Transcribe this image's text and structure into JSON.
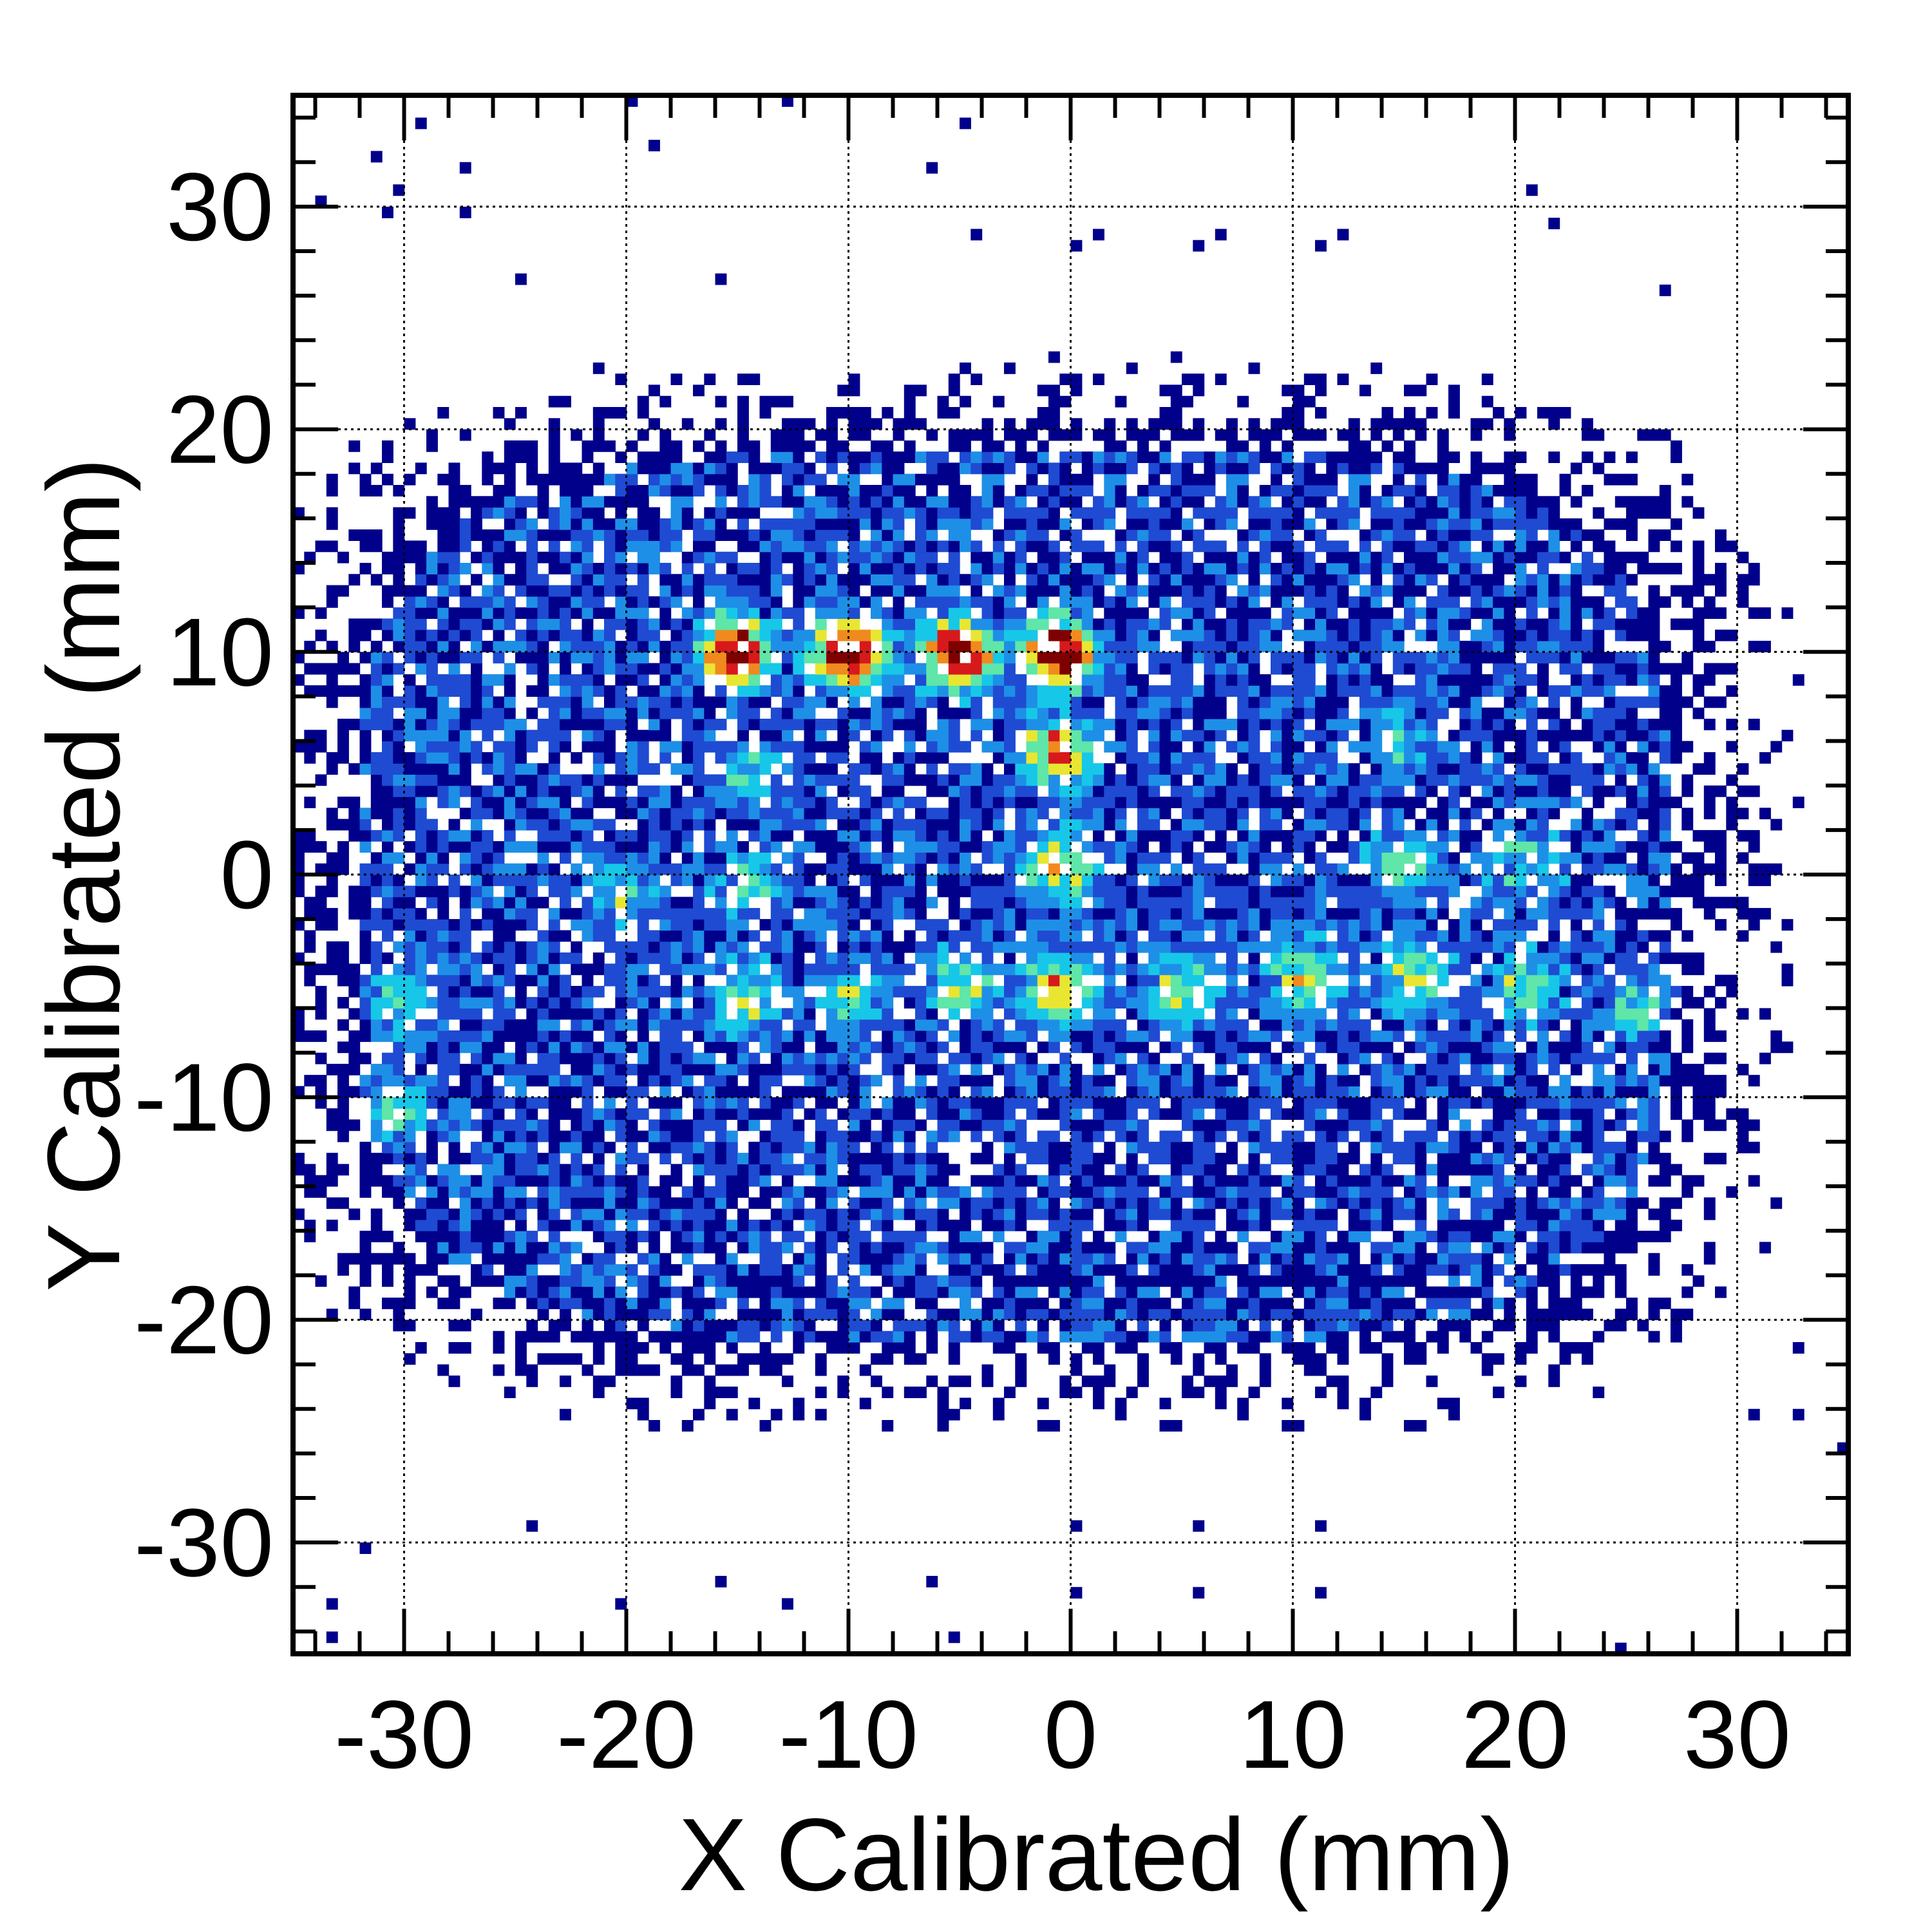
{
  "chart_data": {
    "type": "heatmap",
    "title": "",
    "xlabel": "X Calibrated (mm)",
    "ylabel": "Y Calibrated (mm)",
    "xlim": [
      -35,
      35
    ],
    "ylim": [
      -35,
      35
    ],
    "xticks": [
      -30,
      -20,
      -10,
      0,
      10,
      20,
      30
    ],
    "yticks": [
      -30,
      -20,
      -10,
      0,
      10,
      20,
      30
    ],
    "xtick_labels": [
      "-30",
      "-20",
      "-10",
      "0",
      "10",
      "20",
      "30"
    ],
    "ytick_labels": [
      "-30",
      "-20",
      "-10",
      "0",
      "10",
      "20",
      "30"
    ],
    "minor_tick_step": 2,
    "grid": true,
    "colormap": [
      "#00008b",
      "#1e4bd2",
      "#1e8fe6",
      "#17c7e8",
      "#5fe6a8",
      "#e8e632",
      "#f08a1e",
      "#d7191c",
      "#7f0000"
    ],
    "hotspots": [
      {
        "x": -15.0,
        "y": 10.0,
        "intensity": 0.95
      },
      {
        "x": -10.0,
        "y": 10.0,
        "intensity": 1.0
      },
      {
        "x": -5.0,
        "y": 10.0,
        "intensity": 1.0
      },
      {
        "x": -0.5,
        "y": 10.0,
        "intensity": 1.0
      },
      {
        "x": -0.5,
        "y": 5.5,
        "intensity": 0.7
      },
      {
        "x": -0.5,
        "y": 0.5,
        "intensity": 0.55
      },
      {
        "x": -0.5,
        "y": -5.0,
        "intensity": 0.6
      },
      {
        "x": -14.5,
        "y": -5.5,
        "intensity": 0.45
      },
      {
        "x": -10.0,
        "y": -5.5,
        "intensity": 0.4
      },
      {
        "x": -5.0,
        "y": -5.0,
        "intensity": 0.4
      },
      {
        "x": 5.0,
        "y": -5.0,
        "intensity": 0.45
      },
      {
        "x": 10.5,
        "y": -4.5,
        "intensity": 0.5
      },
      {
        "x": 15.5,
        "y": -4.5,
        "intensity": 0.45
      },
      {
        "x": 20.5,
        "y": -5.0,
        "intensity": 0.4
      },
      {
        "x": 15.0,
        "y": 0.5,
        "intensity": 0.4
      },
      {
        "x": 20.5,
        "y": 0.5,
        "intensity": 0.35
      },
      {
        "x": -30.5,
        "y": -10.5,
        "intensity": 0.35
      },
      {
        "x": -30.0,
        "y": -5.5,
        "intensity": 0.35
      },
      {
        "x": -20.0,
        "y": -1.0,
        "intensity": 0.3
      },
      {
        "x": -14.5,
        "y": -0.5,
        "intensity": 0.35
      },
      {
        "x": 25.5,
        "y": -6.0,
        "intensity": 0.3
      },
      {
        "x": -14.5,
        "y": 4.5,
        "intensity": 0.3
      },
      {
        "x": 15.0,
        "y": 6.0,
        "intensity": 0.25
      }
    ],
    "occupied_region": {
      "x_min": -32,
      "x_max": 27,
      "y_min": -21,
      "y_max": 19
    }
  }
}
